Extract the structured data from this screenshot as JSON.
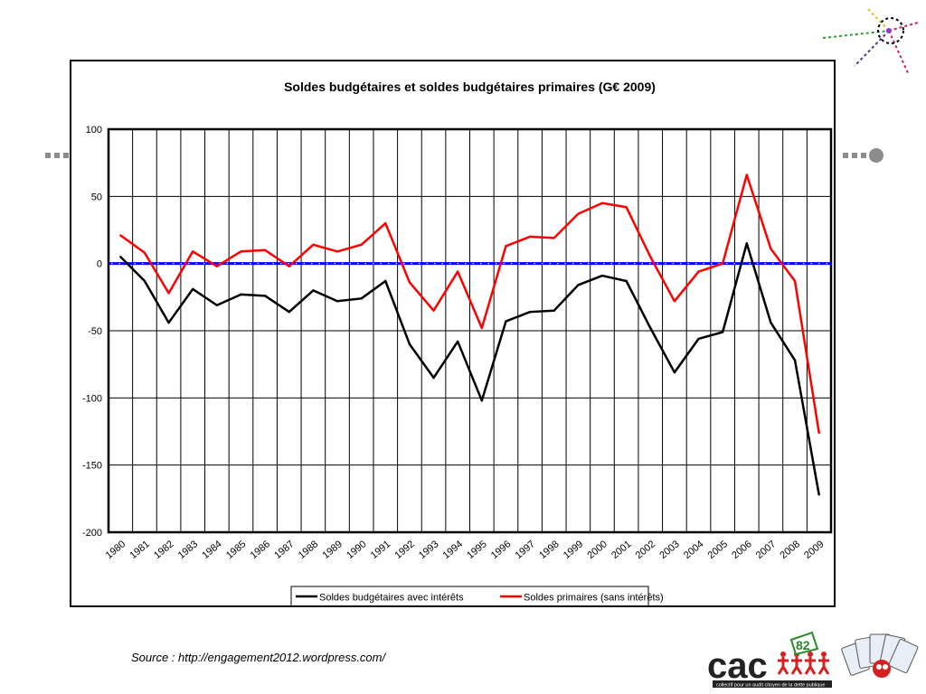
{
  "source_text": "Source : http://engagement2012.wordpress.com/",
  "logo": {
    "name": "cac",
    "number": "82",
    "tagline": "collectif pour un audit citoyen de la dette publique"
  },
  "colors": {
    "series_1": "#000000",
    "series_2": "#ff0000",
    "zero_line": "#0000ff",
    "deco_grey": "#8c8c8c"
  },
  "chart_data": {
    "type": "line",
    "title": "Soldes budgétaires et soldes budgétaires primaires (G€ 2009)",
    "xlabel": "",
    "ylabel": "",
    "ylim": [
      -200,
      100
    ],
    "yticks": [
      100,
      50,
      0,
      -50,
      -100,
      -150,
      -200
    ],
    "grid": true,
    "legend_position": "bottom",
    "categories": [
      "1980",
      "1981",
      "1982",
      "1983",
      "1984",
      "1985",
      "1986",
      "1987",
      "1988",
      "1989",
      "1990",
      "1991",
      "1992",
      "1993",
      "1994",
      "1995",
      "1996",
      "1997",
      "1998",
      "1999",
      "2000",
      "2001",
      "2002",
      "2003",
      "2004",
      "2005",
      "2006",
      "2007",
      "2008",
      "2009"
    ],
    "series": [
      {
        "name": "Soldes budgétaires avec intérêts",
        "values": [
          5,
          -13,
          -44,
          -19,
          -31,
          -23,
          -24,
          -36,
          -20,
          -28,
          -26,
          -13,
          -60,
          -85,
          -58,
          -102,
          -43,
          -36,
          -35,
          -16,
          -9,
          -13,
          -48,
          -81,
          -56,
          -51,
          15,
          -44,
          -72,
          -172
        ]
      },
      {
        "name": "Soldes primaires (sans intérêts)",
        "values": [
          21,
          8,
          -22,
          9,
          -2,
          9,
          10,
          -2,
          14,
          9,
          14,
          30,
          -14,
          -35,
          -6,
          -48,
          13,
          20,
          19,
          37,
          45,
          42,
          5,
          -28,
          -6,
          0,
          66,
          11,
          -13,
          -126
        ]
      }
    ]
  }
}
